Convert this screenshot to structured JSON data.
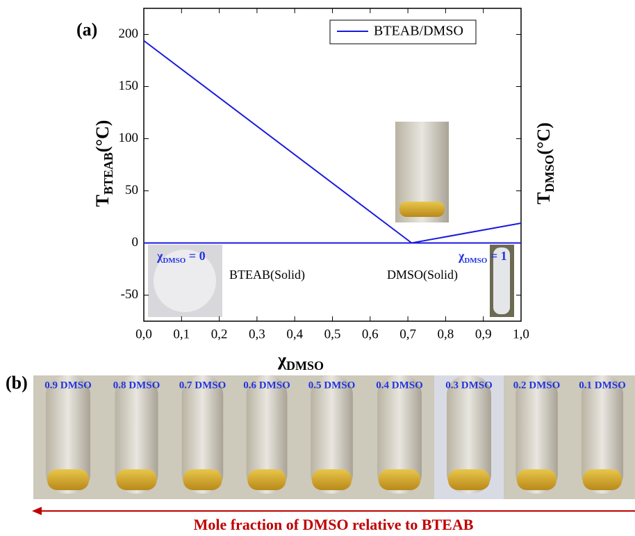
{
  "chart_data": {
    "type": "line",
    "panel_a_label": "(a)",
    "panel_b_label": "(b)",
    "x": [
      0,
      0.71,
      1
    ],
    "series": [
      {
        "name": "BTEAB/DMSO",
        "color": "#1a1adf",
        "values": [
          194,
          0,
          19
        ]
      }
    ],
    "baseline": 0,
    "xlim": [
      0,
      1
    ],
    "xticks": [
      {
        "value": 0,
        "label": "0,0"
      },
      {
        "value": 0.1,
        "label": "0,1"
      },
      {
        "value": 0.2,
        "label": "0,2"
      },
      {
        "value": 0.3,
        "label": "0,3"
      },
      {
        "value": 0.4,
        "label": "0,4"
      },
      {
        "value": 0.5,
        "label": "0,5"
      },
      {
        "value": 0.6,
        "label": "0,6"
      },
      {
        "value": 0.7,
        "label": "0,7"
      },
      {
        "value": 0.8,
        "label": "0,8"
      },
      {
        "value": 0.9,
        "label": "0,9"
      },
      {
        "value": 1,
        "label": "1,0"
      }
    ],
    "ylim": [
      -75,
      225
    ],
    "yticks": [
      -50,
      0,
      50,
      100,
      150,
      200
    ],
    "xlabel": {
      "main": "χ",
      "sub": "DMSO"
    },
    "ylabel": {
      "main": "T",
      "sub": "BTEAB",
      "unit": "(°C)"
    },
    "y2label": {
      "main": "T",
      "sub": "DMSO",
      "unit": "(°C)"
    },
    "legend": "upper right",
    "annotations": {
      "left_region": "BTEAB(Solid)",
      "right_region": "DMSO(Solid)",
      "left_inset": {
        "main": "χ",
        "sub": "DMSO",
        "rest": " = 0"
      },
      "right_inset": {
        "main": "χ",
        "sub": "DMSO",
        "rest": " = 1"
      }
    },
    "photo_labels": [
      "0.9 DMSO",
      "0.8 DMSO",
      "0.7 DMSO",
      "0.6 DMSO",
      "0.5 DMSO",
      "0.4 DMSO",
      "0.3 DMSO",
      "0.2 DMSO",
      "0.1 DMSO"
    ],
    "arrow_label": "Mole fraction of DMSO relative to BTEAB"
  }
}
